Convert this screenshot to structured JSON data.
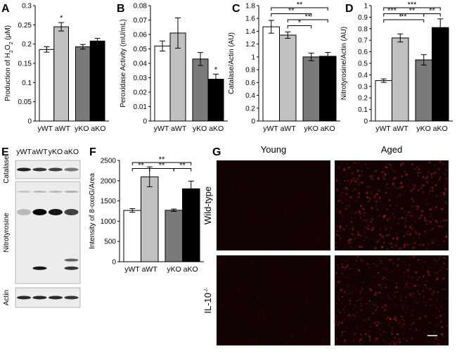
{
  "panels": {
    "A": "A",
    "B": "B",
    "C": "C",
    "D": "D",
    "E": "E",
    "F": "F",
    "G": "G"
  },
  "colors": {
    "yWT": "#ffffff",
    "aWT": "#c0c0c0",
    "yKO": "#7a7a7a",
    "aKO": "#000000"
  },
  "chart_data": [
    {
      "id": "A",
      "type": "bar",
      "ylabel": "Production of H2O2 (μM)",
      "ylim": [
        0,
        0.3
      ],
      "yticks": [
        "0",
        "0.05",
        "0.1",
        "0.15",
        "0.2",
        "0.25",
        "0.3"
      ],
      "categories": [
        "yWT",
        "aWT",
        "yKO",
        "aKO"
      ],
      "group_labels": [
        "yWT aWT",
        "yKO aKO"
      ],
      "values": [
        0.186,
        0.245,
        0.193,
        0.208
      ],
      "errors": [
        0.007,
        0.011,
        0.006,
        0.007
      ],
      "stars": [
        {
          "bar": 1,
          "label": "*"
        }
      ],
      "brackets": []
    },
    {
      "id": "B",
      "type": "bar",
      "ylabel": "Peroxidase Activity (mU/mL)",
      "ylim": [
        0,
        0.08
      ],
      "yticks": [
        "0",
        "0.01",
        "0.02",
        "0.03",
        "0.04",
        "0.05",
        "0.06",
        "0.07",
        "0.08"
      ],
      "categories": [
        "yWT",
        "aWT",
        "yKO",
        "aKO"
      ],
      "group_labels": [
        "yWT aWT",
        "yKO aKO"
      ],
      "values": [
        0.052,
        0.061,
        0.043,
        0.029
      ],
      "errors": [
        0.0035,
        0.0105,
        0.0045,
        0.0035
      ],
      "stars": [
        {
          "bar": 3,
          "label": "*"
        }
      ],
      "brackets": []
    },
    {
      "id": "C",
      "type": "bar",
      "ylabel": "Catalase/Actin (AU)",
      "ylim": [
        0,
        1.8
      ],
      "yticks": [
        "0",
        "0.2",
        "0.4",
        "0.6",
        "0.8",
        "1",
        "1.2",
        "1.4",
        "1.6",
        "1.8"
      ],
      "categories": [
        "yWT",
        "aWT",
        "yKO",
        "aKO"
      ],
      "group_labels": [
        "yWT aWT",
        "yKO aKO"
      ],
      "values": [
        1.47,
        1.34,
        1.0,
        1.01
      ],
      "errors": [
        0.1,
        0.05,
        0.06,
        0.06
      ],
      "stars": [],
      "brackets": [
        {
          "from": 0,
          "to": 3,
          "label": "**",
          "level": 0
        },
        {
          "from": 0,
          "to": 2,
          "label": "**",
          "level": 1
        },
        {
          "from": 1,
          "to": 3,
          "label": "**",
          "level": 2
        },
        {
          "from": 1,
          "to": 2,
          "label": "*",
          "level": 3
        }
      ]
    },
    {
      "id": "D",
      "type": "bar",
      "ylabel": "Nitrotyrosine/Actin (AU)",
      "ylim": [
        0,
        1.0
      ],
      "yticks": [
        "0",
        "0.1",
        "0.2",
        "0.3",
        "0.4",
        "0.5",
        "0.6",
        "0.7",
        "0.8",
        "0.9",
        "1"
      ],
      "categories": [
        "yWT",
        "aWT",
        "yKO",
        "aKO"
      ],
      "group_labels": [
        "yWT aWT",
        "yKO aKO"
      ],
      "values": [
        0.35,
        0.72,
        0.53,
        0.81
      ],
      "errors": [
        0.015,
        0.035,
        0.045,
        0.075
      ],
      "stars": [],
      "brackets": [
        {
          "from": 0,
          "to": 3,
          "label": "***",
          "level": 0
        },
        {
          "from": 0,
          "to": 1,
          "label": "***",
          "level": 1
        },
        {
          "from": 1,
          "to": 2,
          "label": "**",
          "level": 1
        },
        {
          "from": 2,
          "to": 3,
          "label": "**",
          "level": 1
        },
        {
          "from": 0,
          "to": 2,
          "label": "**",
          "level": 2
        }
      ]
    },
    {
      "id": "F",
      "type": "bar",
      "ylabel": "Intensity of 8-oxoG/Area",
      "ylim": [
        0,
        2500
      ],
      "yticks": [
        "0",
        "500",
        "1000",
        "1500",
        "2000",
        "2500"
      ],
      "categories": [
        "yWT",
        "aWT",
        "yKO",
        "aKO"
      ],
      "group_labels": [
        "yWT aWT",
        "yKO aKO"
      ],
      "values": [
        1265,
        2095,
        1270,
        1800
      ],
      "errors": [
        45,
        245,
        30,
        190
      ],
      "stars": [],
      "brackets": [
        {
          "from": 0,
          "to": 3,
          "label": "**",
          "level": 0
        },
        {
          "from": 0,
          "to": 1,
          "label": "**",
          "level": 1
        },
        {
          "from": 1,
          "to": 2,
          "label": "**",
          "level": 1
        },
        {
          "from": 2,
          "to": 3,
          "label": "**",
          "level": 1
        }
      ]
    }
  ],
  "blot": {
    "lanes": [
      "yWT",
      "aWT",
      "yKO",
      "aKO"
    ],
    "rows": [
      {
        "name": "Catalase",
        "bands": [
          {
            "y": 0.5,
            "int": [
              0.9,
              0.8,
              0.75,
              0.5
            ],
            "h": 5
          }
        ]
      },
      {
        "name": "Nitrotyrosine",
        "bands": [
          {
            "y": 0.1,
            "int": [
              0.15,
              0.2,
              0.2,
              0.25
            ],
            "h": 3
          },
          {
            "y": 0.3,
            "int": [
              0.2,
              1.0,
              0.95,
              0.75
            ],
            "h": 9
          },
          {
            "y": 0.85,
            "int": [
              0.0,
              0.95,
              0.0,
              0.8
            ],
            "h": 5
          },
          {
            "y": 0.77,
            "int": [
              0.0,
              0.0,
              0.0,
              0.6
            ],
            "h": 4
          }
        ]
      },
      {
        "name": "Actin",
        "bands": [
          {
            "y": 0.5,
            "int": [
              0.85,
              0.85,
              0.85,
              0.8
            ],
            "h": 5
          }
        ]
      }
    ]
  },
  "micrograph": {
    "columns": [
      "Young",
      "Aged"
    ],
    "rows": [
      "Wild-type",
      "IL-10-/-"
    ],
    "intensity": [
      [
        0.15,
        0.55
      ],
      [
        0.2,
        0.5
      ]
    ]
  }
}
